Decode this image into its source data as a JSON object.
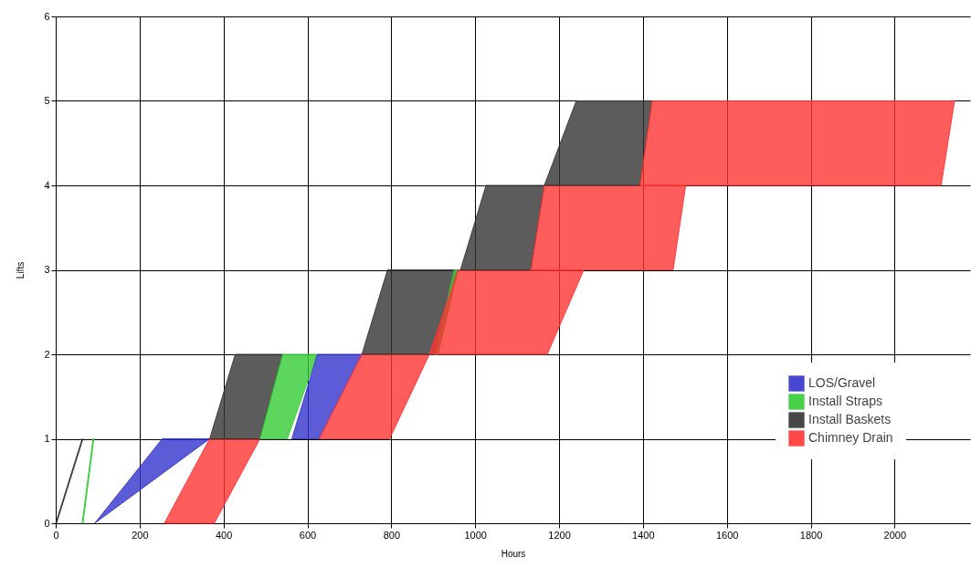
{
  "chart_data": {
    "type": "area",
    "xlabel": "Hours",
    "ylabel": "Lifts",
    "xlim": [
      0,
      2180
    ],
    "ylim": [
      0,
      6
    ],
    "xticks": [
      0,
      200,
      400,
      600,
      800,
      1000,
      1200,
      1400,
      1600,
      1800,
      2000
    ],
    "yticks": [
      0,
      1,
      2,
      3,
      4,
      5,
      6
    ],
    "grid": true,
    "legend": "bottom right",
    "series": [
      {
        "name": "LOS/Gravel",
        "color": "#3333cc",
        "x": [
          93,
          254,
          367,
          93
        ],
        "values": [
          0,
          1,
          1,
          0
        ]
      },
      {
        "name": "Install Straps",
        "color": "#33cc33",
        "x": [
          63,
          89,
          91,
          65
        ],
        "values": [
          0,
          1,
          1,
          0
        ]
      },
      {
        "name": "Install Baskets",
        "color": "#333333",
        "x": [
          0,
          63,
          65,
          2
        ],
        "values": [
          0,
          1,
          1,
          0
        ]
      },
      {
        "name": "Chimney Drain",
        "color": "#ff3333",
        "x": [
          259,
          367,
          487,
          378
        ],
        "values": [
          0,
          1,
          1,
          0
        ]
      },
      {
        "color": "#333333",
        "x": [
          367,
          428,
          541,
          487
        ],
        "values": [
          1,
          2,
          2,
          1
        ]
      },
      {
        "color": "#33cc33",
        "x": [
          487,
          541,
          624,
          552
        ],
        "values": [
          1,
          2,
          2,
          1
        ]
      },
      {
        "color": "#3333cc",
        "x": [
          563,
          624,
          730,
          628
        ],
        "values": [
          1,
          2,
          2,
          1
        ]
      },
      {
        "color": "#ff3333",
        "x": [
          628,
          730,
          891,
          796
        ],
        "values": [
          1,
          2,
          2,
          1
        ]
      },
      {
        "color": "#333333",
        "x": [
          730,
          791,
          959,
          911
        ],
        "values": [
          2,
          3,
          3,
          2
        ]
      },
      {
        "color": "#33cc33",
        "x": [
          905,
          950,
          959,
          911
        ],
        "values": [
          2,
          3,
          3,
          2
        ]
      },
      {
        "color": "#ff3333",
        "x": [
          891,
          959,
          1259,
          1172
        ],
        "values": [
          2,
          3,
          3,
          2
        ]
      },
      {
        "color": "#333333",
        "x": [
          965,
          1026,
          1165,
          1133
        ],
        "values": [
          3,
          4,
          4,
          3
        ]
      },
      {
        "color": "#ff3333",
        "x": [
          1133,
          1165,
          1502,
          1472
        ],
        "values": [
          3,
          4,
          4,
          3
        ]
      },
      {
        "color": "#333333",
        "x": [
          1165,
          1241,
          1422,
          1393
        ],
        "values": [
          4,
          5,
          5,
          4
        ]
      },
      {
        "color": "#ff3333",
        "x": [
          1393,
          1422,
          2143,
          2111
        ],
        "values": [
          4,
          5,
          5,
          4
        ]
      }
    ]
  }
}
